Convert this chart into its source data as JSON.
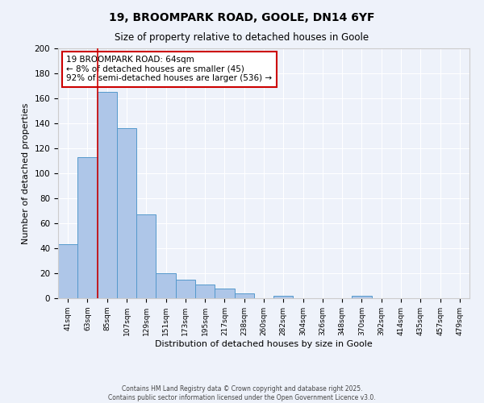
{
  "title1": "19, BROOMPARK ROAD, GOOLE, DN14 6YF",
  "title2": "Size of property relative to detached houses in Goole",
  "xlabel": "Distribution of detached houses by size in Goole",
  "ylabel": "Number of detached properties",
  "bar_labels": [
    "41sqm",
    "63sqm",
    "85sqm",
    "107sqm",
    "129sqm",
    "151sqm",
    "173sqm",
    "195sqm",
    "217sqm",
    "238sqm",
    "260sqm",
    "282sqm",
    "304sqm",
    "326sqm",
    "348sqm",
    "370sqm",
    "392sqm",
    "414sqm",
    "435sqm",
    "457sqm",
    "479sqm"
  ],
  "bar_values": [
    43,
    113,
    165,
    136,
    67,
    20,
    15,
    11,
    8,
    4,
    0,
    2,
    0,
    0,
    0,
    2,
    0,
    0,
    0,
    0,
    0
  ],
  "bar_color": "#aec6e8",
  "bar_edge_color": "#5599cc",
  "vline_x": 1.5,
  "vline_color": "#cc0000",
  "annotation_title": "19 BROOMPARK ROAD: 64sqm",
  "annotation_line1": "← 8% of detached houses are smaller (45)",
  "annotation_line2": "92% of semi-detached houses are larger (536) →",
  "annotation_box_edge": "#cc0000",
  "ylim": [
    0,
    200
  ],
  "yticks": [
    0,
    20,
    40,
    60,
    80,
    100,
    120,
    140,
    160,
    180,
    200
  ],
  "background_color": "#eef2fa",
  "footer1": "Contains HM Land Registry data © Crown copyright and database right 2025.",
  "footer2": "Contains public sector information licensed under the Open Government Licence v3.0."
}
